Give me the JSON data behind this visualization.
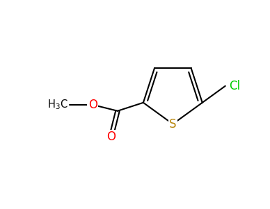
{
  "bg_color": "#ffffff",
  "bond_color": "#000000",
  "S_color": "#b8860b",
  "O_color": "#ff0000",
  "Cl_color": "#00cc00",
  "C_color": "#000000",
  "bond_width": 1.5,
  "figsize": [
    3.88,
    3.01
  ],
  "dpi": 100,
  "xlim": [
    0,
    10
  ],
  "ylim": [
    0,
    7.75
  ]
}
